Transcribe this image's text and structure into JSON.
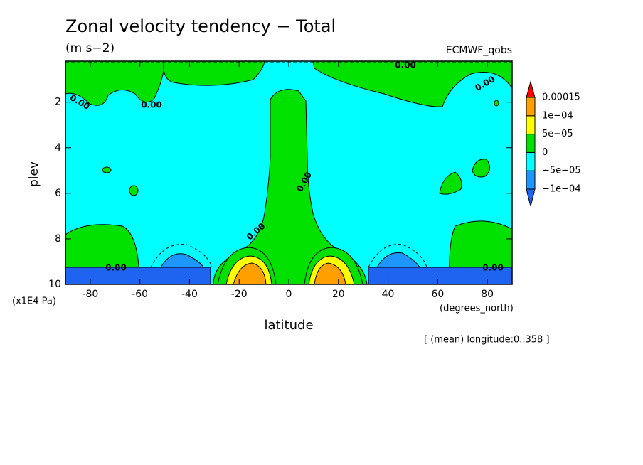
{
  "chart_data": {
    "type": "contour",
    "title": "Zonal velocity tendency − Total",
    "subtitle": "(m s−2)",
    "source": "ECMWF_qobs",
    "xlabel": "latitude",
    "ylabel": "plev",
    "x_unit": "(degrees_north)",
    "y_unit": "(x1E4 Pa)",
    "note": "[ (mean) longitude:0..358 ]",
    "xlim": [
      -90,
      90
    ],
    "xticks": [
      -80,
      -60,
      -40,
      -20,
      0,
      20,
      40,
      60,
      80
    ],
    "ylim": [
      10,
      0.2
    ],
    "yticks": [
      2,
      4,
      6,
      8,
      10
    ],
    "contour_labels": [
      "0.00",
      "0.00",
      "0.00",
      "0.00",
      "0.00",
      "0.00",
      "0.00",
      "0.00"
    ],
    "colorbar": {
      "levels": [
        {
          "value": -0.0001,
          "label": "−1e−04"
        },
        {
          "value": -5e-05,
          "label": "−5e−05"
        },
        0,
        {
          "value": 5e-05,
          "label": "5e−05"
        },
        {
          "value": 0.0001,
          "label": "1e−04"
        },
        0.00015
      ],
      "colors": [
        "#1e64f0",
        "#1e96ff",
        "#00ffff",
        "#00e100",
        "#ffff00",
        "#ffa000",
        "#ff0000"
      ]
    }
  }
}
